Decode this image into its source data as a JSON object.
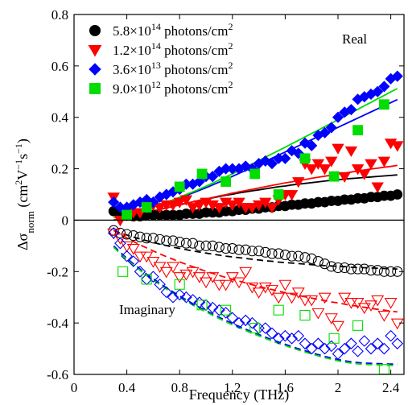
{
  "chart_data": {
    "type": "scatter",
    "xlabel": "Frequency (THz)",
    "ylabel": "Δσnorm (cm²V⁻¹s⁻¹)",
    "xlim": [
      0,
      2.5
    ],
    "ylim": [
      -0.6,
      0.8
    ],
    "xticks": [
      0,
      0.4,
      0.8,
      1.2,
      1.6,
      2,
      2.4
    ],
    "xtick_labels": [
      "0",
      "0.4",
      "0.8",
      "1.2",
      "1.6",
      "2",
      "2.4"
    ],
    "yticks": [
      -0.6,
      -0.4,
      -0.2,
      0,
      0.2,
      0.4,
      0.6,
      0.8
    ],
    "ytick_labels": [
      "-0.6",
      "-0.4",
      "-0.2",
      "0",
      "0.2",
      "0.4",
      "0.6",
      "0.8"
    ],
    "grid": false,
    "legend_position": "top-left",
    "annotations": [
      "Real",
      "Imaginary"
    ],
    "x": [
      0.3,
      0.35,
      0.4,
      0.45,
      0.5,
      0.55,
      0.6,
      0.65,
      0.7,
      0.75,
      0.8,
      0.85,
      0.9,
      0.95,
      1.0,
      1.05,
      1.1,
      1.15,
      1.2,
      1.25,
      1.3,
      1.35,
      1.4,
      1.45,
      1.5,
      1.55,
      1.6,
      1.65,
      1.7,
      1.75,
      1.8,
      1.85,
      1.9,
      1.95,
      2.0,
      2.05,
      2.1,
      2.15,
      2.2,
      2.25,
      2.3,
      2.35,
      2.4,
      2.45
    ],
    "series": [
      {
        "name": "5.8×10¹⁴ photons/cm²",
        "legend_mantissa": "5.8×10",
        "legend_exp": "14",
        "legend_unit": " photons/cm",
        "legend_unit_exp": "2",
        "color": "#000000",
        "marker": "circle",
        "real": [
          0.035,
          0.02,
          0.02,
          0.015,
          0.015,
          0.02,
          0.02,
          0.02,
          0.02,
          0.02,
          0.02,
          0.025,
          0.025,
          0.025,
          0.03,
          0.03,
          0.03,
          0.035,
          0.035,
          0.04,
          0.04,
          0.045,
          0.045,
          0.05,
          0.05,
          0.055,
          0.055,
          0.06,
          0.06,
          0.065,
          0.065,
          0.07,
          0.07,
          0.075,
          0.075,
          0.08,
          0.08,
          0.085,
          0.085,
          0.09,
          0.09,
          0.095,
          0.095,
          0.1
        ],
        "imag": [
          -0.04,
          -0.05,
          -0.055,
          -0.06,
          -0.065,
          -0.07,
          -0.07,
          -0.075,
          -0.08,
          -0.08,
          -0.085,
          -0.09,
          -0.09,
          -0.1,
          -0.1,
          -0.1,
          -0.105,
          -0.11,
          -0.11,
          -0.115,
          -0.115,
          -0.12,
          -0.12,
          -0.125,
          -0.13,
          -0.13,
          -0.135,
          -0.14,
          -0.14,
          -0.145,
          -0.15,
          -0.16,
          -0.17,
          -0.18,
          -0.185,
          -0.185,
          -0.19,
          -0.19,
          -0.19,
          -0.195,
          -0.195,
          -0.2,
          -0.2,
          -0.2
        ],
        "fit_real": [
          0.0,
          0.006,
          0.012,
          0.018,
          0.024,
          0.03,
          0.036,
          0.042,
          0.048,
          0.054,
          0.06,
          0.066,
          0.071,
          0.077,
          0.082,
          0.087,
          0.092,
          0.097,
          0.101,
          0.106,
          0.11,
          0.114,
          0.118,
          0.122,
          0.126,
          0.13,
          0.133,
          0.137,
          0.14,
          0.143,
          0.146,
          0.149,
          0.152,
          0.155,
          0.157,
          0.16,
          0.162,
          0.164,
          0.166,
          0.168,
          0.17,
          0.172,
          0.174,
          0.176
        ],
        "fit_imag": [
          -0.04,
          -0.05,
          -0.058,
          -0.066,
          -0.073,
          -0.08,
          -0.087,
          -0.093,
          -0.099,
          -0.105,
          -0.11,
          -0.115,
          -0.12,
          -0.124,
          -0.128,
          -0.132,
          -0.136,
          -0.14,
          -0.143,
          -0.146,
          -0.149,
          -0.152,
          -0.155,
          -0.158,
          -0.16,
          -0.163,
          -0.165,
          -0.167,
          -0.169,
          -0.171,
          -0.173,
          -0.175,
          -0.177,
          -0.178,
          -0.18,
          -0.181,
          -0.183,
          -0.184,
          -0.185,
          -0.186,
          -0.187,
          -0.188,
          -0.189,
          -0.19
        ]
      },
      {
        "name": "1.2×10¹⁴ photons/cm²",
        "legend_mantissa": "1.2×10",
        "legend_exp": "14",
        "legend_unit": " photons/cm",
        "legend_unit_exp": "2",
        "color": "#ff0000",
        "marker": "triangle-down",
        "real": [
          0.09,
          0.0,
          0.02,
          0.03,
          0.03,
          0.05,
          0.06,
          0.05,
          0.06,
          0.06,
          0.07,
          0.08,
          0.05,
          0.06,
          0.07,
          0.06,
          0.05,
          0.07,
          0.06,
          0.07,
          0.05,
          0.05,
          0.06,
          0.07,
          0.05,
          0.08,
          0.1,
          0.1,
          0.15,
          0.22,
          0.2,
          0.22,
          0.2,
          0.23,
          0.28,
          0.17,
          0.27,
          0.2,
          0.18,
          0.22,
          0.13,
          0.23,
          0.3,
          0.29
        ],
        "imag": [
          -0.05,
          -0.07,
          -0.1,
          -0.11,
          -0.14,
          -0.14,
          -0.16,
          -0.18,
          -0.2,
          -0.18,
          -0.22,
          -0.21,
          -0.2,
          -0.22,
          -0.24,
          -0.22,
          -0.25,
          -0.25,
          -0.22,
          -0.24,
          -0.2,
          -0.26,
          -0.28,
          -0.26,
          -0.27,
          -0.3,
          -0.25,
          -0.3,
          -0.28,
          -0.31,
          -0.31,
          -0.36,
          -0.3,
          -0.38,
          -0.41,
          -0.3,
          -0.32,
          -0.32,
          -0.34,
          -0.33,
          -0.31,
          -0.37,
          -0.32,
          -0.4
        ]
      },
      {
        "name": "3.6×10¹³ photons/cm²",
        "legend_mantissa": "3.6×10",
        "legend_exp": "13",
        "legend_unit": " photons/cm",
        "legend_unit_exp": "2",
        "color": "#0000ff",
        "marker": "diamond",
        "real": [
          0.07,
          0.05,
          0.05,
          0.06,
          0.07,
          0.08,
          0.07,
          0.09,
          0.1,
          0.11,
          0.12,
          0.14,
          0.14,
          0.15,
          0.17,
          0.17,
          0.19,
          0.2,
          0.2,
          0.2,
          0.21,
          0.2,
          0.22,
          0.23,
          0.22,
          0.24,
          0.24,
          0.27,
          0.26,
          0.3,
          0.29,
          0.33,
          0.34,
          0.36,
          0.4,
          0.42,
          0.43,
          0.47,
          0.48,
          0.49,
          0.5,
          0.52,
          0.55,
          0.56
        ],
        "imag": [
          -0.05,
          -0.09,
          -0.14,
          -0.16,
          -0.2,
          -0.23,
          -0.22,
          -0.25,
          -0.28,
          -0.3,
          -0.29,
          -0.3,
          -0.31,
          -0.32,
          -0.33,
          -0.34,
          -0.35,
          -0.36,
          -0.38,
          -0.4,
          -0.39,
          -0.4,
          -0.42,
          -0.42,
          -0.44,
          -0.46,
          -0.45,
          -0.46,
          -0.45,
          -0.48,
          -0.5,
          -0.48,
          -0.5,
          -0.49,
          -0.52,
          -0.5,
          -0.48,
          -0.51,
          -0.47,
          -0.5,
          -0.48,
          -0.5,
          -0.45,
          -0.48
        ],
        "fit_real": [
          0.02,
          0.025,
          0.03,
          0.035,
          0.04,
          0.047,
          0.054,
          0.061,
          0.069,
          0.078,
          0.087,
          0.096,
          0.106,
          0.116,
          0.126,
          0.137,
          0.148,
          0.159,
          0.17,
          0.182,
          0.193,
          0.205,
          0.217,
          0.229,
          0.241,
          0.253,
          0.265,
          0.277,
          0.289,
          0.301,
          0.313,
          0.325,
          0.337,
          0.349,
          0.361,
          0.373,
          0.385,
          0.397,
          0.409,
          0.421,
          0.433,
          0.445,
          0.457,
          0.469
        ]
      },
      {
        "name": "9.0×10¹² photons/cm²",
        "legend_mantissa": "9.0×10",
        "legend_exp": "12",
        "legend_unit": " photons/cm",
        "legend_unit_exp": "2",
        "color": "#00dd00",
        "marker": "square",
        "real_x": [
          0.4,
          0.55,
          0.8,
          0.97,
          1.15,
          1.37,
          1.55,
          1.75,
          1.97,
          2.15,
          2.35
        ],
        "real": [
          0.02,
          0.05,
          0.13,
          0.18,
          0.15,
          0.18,
          0.1,
          0.24,
          0.17,
          0.35,
          0.45
        ],
        "imag_x": [
          0.37,
          0.55,
          0.8,
          0.97,
          1.15,
          1.37,
          1.55,
          1.75,
          1.97,
          2.15,
          2.35
        ],
        "imag": [
          -0.2,
          -0.23,
          -0.25,
          -0.33,
          -0.35,
          -0.42,
          -0.35,
          -0.37,
          -0.46,
          -0.41,
          -0.58
        ],
        "fit_real": [
          0.01,
          0.015,
          0.021,
          0.028,
          0.035,
          0.043,
          0.051,
          0.06,
          0.069,
          0.079,
          0.089,
          0.1,
          0.11,
          0.121,
          0.132,
          0.144,
          0.156,
          0.168,
          0.18,
          0.193,
          0.206,
          0.219,
          0.232,
          0.245,
          0.258,
          0.271,
          0.284,
          0.297,
          0.31,
          0.324,
          0.337,
          0.35,
          0.364,
          0.377,
          0.391,
          0.404,
          0.418,
          0.431,
          0.445,
          0.458,
          0.472,
          0.485,
          0.499,
          0.512
        ]
      }
    ],
    "fits": [
      {
        "series": 1,
        "part": "real",
        "color": "#ff0000",
        "style": "solid",
        "values": [
          0.0,
          0.005,
          0.011,
          0.017,
          0.023,
          0.029,
          0.035,
          0.041,
          0.047,
          0.053,
          0.059,
          0.065,
          0.071,
          0.077,
          0.082,
          0.088,
          0.094,
          0.099,
          0.105,
          0.11,
          0.115,
          0.12,
          0.125,
          0.13,
          0.135,
          0.14,
          0.145,
          0.149,
          0.154,
          0.158,
          0.163,
          0.167,
          0.171,
          0.175,
          0.179,
          0.183,
          0.187,
          0.191,
          0.195,
          0.199,
          0.202,
          0.206,
          0.209,
          0.213
        ]
      },
      {
        "series": 1,
        "part": "imag",
        "color": "#ff0000",
        "style": "dashed",
        "values": [
          -0.04,
          -0.055,
          -0.069,
          -0.083,
          -0.096,
          -0.108,
          -0.12,
          -0.131,
          -0.142,
          -0.152,
          -0.162,
          -0.172,
          -0.181,
          -0.19,
          -0.199,
          -0.207,
          -0.215,
          -0.223,
          -0.23,
          -0.237,
          -0.244,
          -0.251,
          -0.258,
          -0.264,
          -0.27,
          -0.276,
          -0.282,
          -0.288,
          -0.293,
          -0.298,
          -0.303,
          -0.308,
          -0.313,
          -0.318,
          -0.322,
          -0.327,
          -0.331,
          -0.335,
          -0.339,
          -0.343,
          -0.347,
          -0.35,
          -0.354,
          -0.357
        ]
      },
      {
        "series": 2,
        "part": "imag",
        "color": "#0000ff",
        "style": "dashed",
        "values": [
          -0.1,
          -0.125,
          -0.148,
          -0.17,
          -0.19,
          -0.21,
          -0.228,
          -0.246,
          -0.263,
          -0.279,
          -0.295,
          -0.31,
          -0.325,
          -0.339,
          -0.352,
          -0.365,
          -0.378,
          -0.39,
          -0.402,
          -0.413,
          -0.424,
          -0.435,
          -0.445,
          -0.455,
          -0.465,
          -0.474,
          -0.483,
          -0.492,
          -0.5,
          -0.508,
          -0.516,
          -0.523,
          -0.53,
          -0.536,
          -0.542,
          -0.547,
          -0.551,
          -0.554,
          -0.556,
          -0.557,
          -0.558,
          -0.559,
          -0.56,
          -0.56
        ]
      },
      {
        "series": 3,
        "part": "imag",
        "color": "#00dd00",
        "style": "dashed",
        "values": [
          -0.105,
          -0.13,
          -0.153,
          -0.175,
          -0.195,
          -0.215,
          -0.233,
          -0.251,
          -0.268,
          -0.284,
          -0.3,
          -0.315,
          -0.33,
          -0.344,
          -0.357,
          -0.37,
          -0.383,
          -0.395,
          -0.407,
          -0.418,
          -0.429,
          -0.44,
          -0.45,
          -0.46,
          -0.47,
          -0.479,
          -0.488,
          -0.497,
          -0.505,
          -0.513,
          -0.521,
          -0.528,
          -0.535,
          -0.541,
          -0.547,
          -0.552,
          -0.556,
          -0.559,
          -0.561,
          -0.562,
          -0.563,
          -0.564,
          -0.565,
          -0.565
        ]
      }
    ]
  }
}
